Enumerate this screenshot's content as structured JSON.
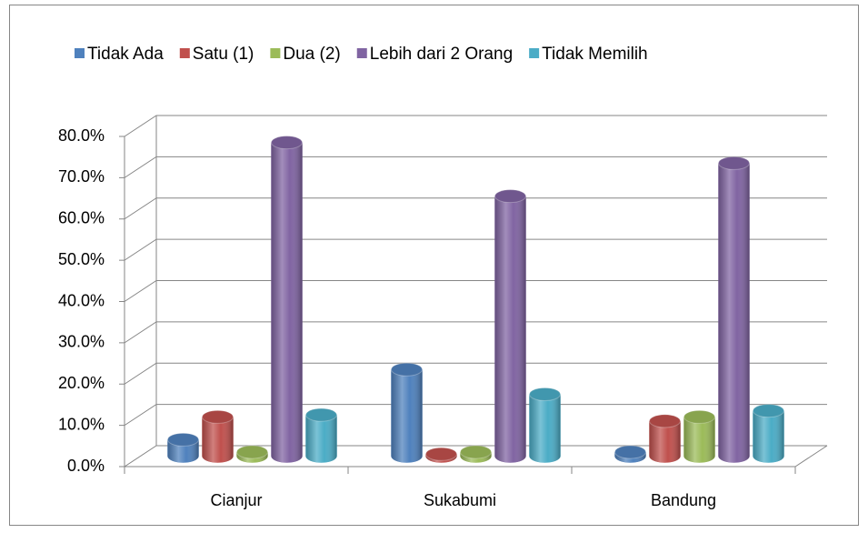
{
  "chart_data": {
    "type": "bar3d",
    "categories": [
      "Cianjur",
      "Sukabumi",
      "Bandung"
    ],
    "series": [
      {
        "name": "Tidak Ada",
        "color": "#4f81bd",
        "values": [
          4,
          21,
          1
        ]
      },
      {
        "name": "Satu (1)",
        "color": "#c0504d",
        "values": [
          9.5,
          0.5,
          8.5
        ]
      },
      {
        "name": "Dua (2)",
        "color": "#9bbb59",
        "values": [
          1,
          1,
          9.5
        ]
      },
      {
        "name": "Lebih dari 2 Orang",
        "color": "#8064a2",
        "values": [
          76,
          63,
          71
        ]
      },
      {
        "name": "Tidak Memilih",
        "color": "#4bacc6",
        "values": [
          10,
          15,
          11
        ]
      }
    ],
    "ylim": [
      0,
      80
    ],
    "yticks": [
      {
        "value": 0,
        "label": "0.0%"
      },
      {
        "value": 10,
        "label": "10.0%"
      },
      {
        "value": 20,
        "label": "20.0%"
      },
      {
        "value": 30,
        "label": "30.0%"
      },
      {
        "value": 40,
        "label": "40.0%"
      },
      {
        "value": 50,
        "label": "50.0%"
      },
      {
        "value": 60,
        "label": "60.0%"
      },
      {
        "value": 70,
        "label": "70.0%"
      },
      {
        "value": 80,
        "label": "80.0%"
      }
    ],
    "grid": true,
    "legend": "top"
  }
}
